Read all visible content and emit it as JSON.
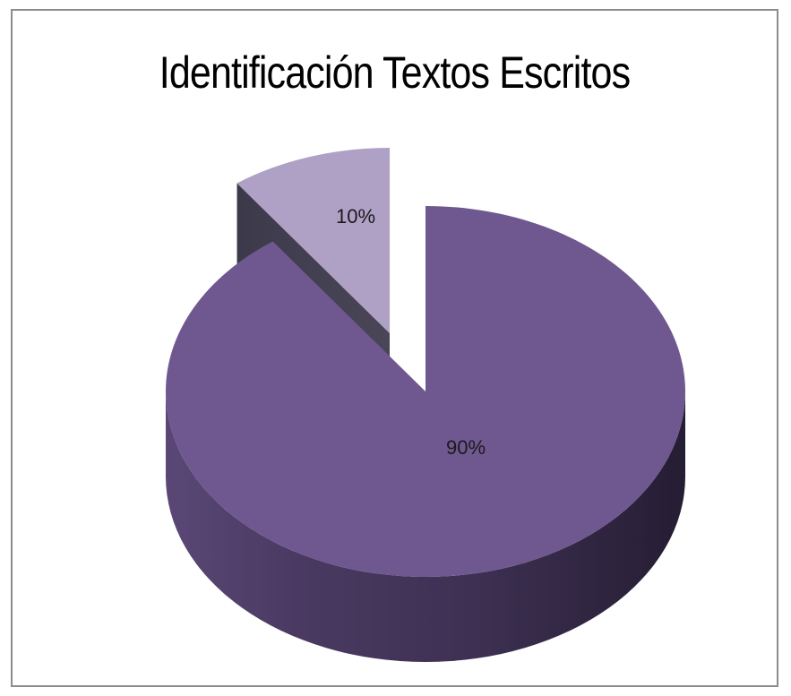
{
  "chart_data": {
    "type": "pie",
    "title": "Identificación Textos Escritos",
    "categories": [
      "",
      ""
    ],
    "values": [
      90,
      10
    ],
    "data_labels": [
      "90%",
      "10%"
    ],
    "colors": [
      "#6F5890",
      "#AFA1C6"
    ],
    "style": "3d-exploded",
    "legend": "none"
  }
}
